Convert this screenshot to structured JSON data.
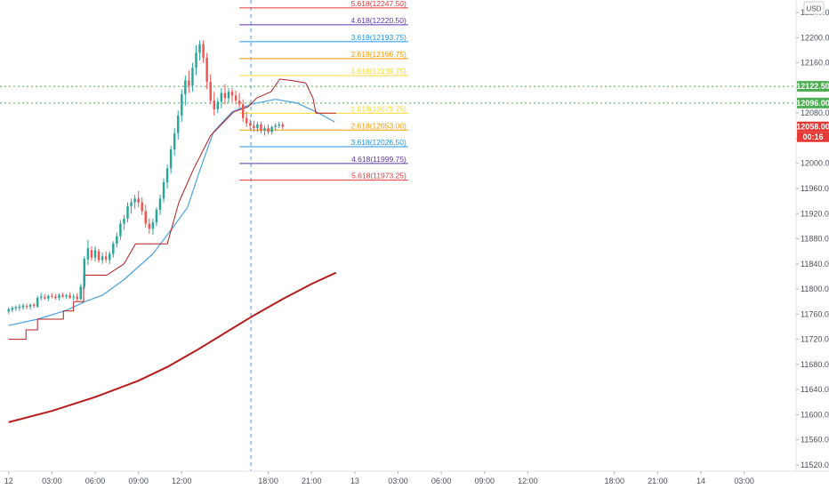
{
  "chart_data": {
    "type": "candlestick",
    "currency": "USD",
    "y_axis": {
      "ticks": [
        12240.0,
        12200.0,
        12160.0,
        12120.0,
        12080.0,
        12040.0,
        12000.0,
        11960.0,
        11920.0,
        11880.0,
        11840.0,
        11800.0,
        11760.0,
        11720.0,
        11680.0,
        11640.0,
        11600.0,
        11560.0,
        11520.0
      ],
      "ylim": [
        11510,
        12260
      ]
    },
    "x_axis": {
      "ticks": [
        "12",
        "03:00",
        "06:00",
        "09:00",
        "12:00",
        "18:00",
        "21:00",
        "13",
        "03:00",
        "06:00",
        "09:00",
        "12:00",
        "18:00",
        "21:00",
        "14",
        "03:00"
      ],
      "tick_hours": [
        0,
        3,
        6,
        9,
        12,
        18,
        21,
        24,
        27,
        30,
        33,
        36,
        42,
        45,
        48,
        51
      ],
      "xlim_hours": [
        -0.6,
        54.6
      ]
    },
    "candles": {
      "start_hour": 0,
      "step_hours": 0.25,
      "ohlc": [
        [
          11764,
          11771,
          11760,
          11768
        ],
        [
          11767,
          11773,
          11763,
          11770
        ],
        [
          11769,
          11774,
          11765,
          11771
        ],
        [
          11770,
          11776,
          11765,
          11772
        ],
        [
          11771,
          11777,
          11767,
          11774
        ],
        [
          11773,
          11777,
          11768,
          11772
        ],
        [
          11772,
          11777,
          11767,
          11775
        ],
        [
          11775,
          11778,
          11770,
          11773
        ],
        [
          11772,
          11789,
          11770,
          11786
        ],
        [
          11786,
          11794,
          11782,
          11788
        ],
        [
          11787,
          11792,
          11783,
          11785
        ],
        [
          11785,
          11791,
          11781,
          11789
        ],
        [
          11789,
          11793,
          11785,
          11788
        ],
        [
          11788,
          11792,
          11783,
          11786
        ],
        [
          11786,
          11793,
          11782,
          11790
        ],
        [
          11790,
          11794,
          11786,
          11788
        ],
        [
          11788,
          11792,
          11784,
          11790
        ],
        [
          11790,
          11794,
          11784,
          11786
        ],
        [
          11786,
          11792,
          11782,
          11788
        ],
        [
          11788,
          11793,
          11781,
          11784
        ],
        [
          11784,
          11808,
          11782,
          11804
        ],
        [
          11804,
          11852,
          11800,
          11848
        ],
        [
          11847,
          11878,
          11838,
          11865
        ],
        [
          11862,
          11868,
          11845,
          11850
        ],
        [
          11850,
          11868,
          11844,
          11862
        ],
        [
          11860,
          11864,
          11842,
          11846
        ],
        [
          11846,
          11858,
          11840,
          11852
        ],
        [
          11852,
          11860,
          11842,
          11847
        ],
        [
          11846,
          11860,
          11840,
          11856
        ],
        [
          11856,
          11876,
          11850,
          11872
        ],
        [
          11872,
          11890,
          11866,
          11884
        ],
        [
          11884,
          11910,
          11878,
          11904
        ],
        [
          11904,
          11918,
          11894,
          11912
        ],
        [
          11912,
          11938,
          11906,
          11932
        ],
        [
          11932,
          11944,
          11920,
          11938
        ],
        [
          11938,
          11950,
          11928,
          11944
        ],
        [
          11944,
          11956,
          11930,
          11938
        ],
        [
          11938,
          11946,
          11918,
          11924
        ],
        [
          11924,
          11934,
          11898,
          11904
        ],
        [
          11904,
          11912,
          11888,
          11896
        ],
        [
          11896,
          11912,
          11886,
          11906
        ],
        [
          11906,
          11930,
          11900,
          11926
        ],
        [
          11926,
          11950,
          11918,
          11944
        ],
        [
          11944,
          11976,
          11938,
          11970
        ],
        [
          11970,
          11998,
          11960,
          11992
        ],
        [
          11992,
          12028,
          11984,
          12022
        ],
        [
          12022,
          12056,
          12012,
          12048
        ],
        [
          12048,
          12084,
          12038,
          12076
        ],
        [
          12076,
          12118,
          12066,
          12110
        ],
        [
          12110,
          12140,
          12092,
          12132
        ],
        [
          12132,
          12148,
          12112,
          12124
        ],
        [
          12124,
          12160,
          12114,
          12152
        ],
        [
          12152,
          12188,
          12140,
          12176
        ],
        [
          12176,
          12196,
          12164,
          12190
        ],
        [
          12190,
          12196,
          12160,
          12168
        ],
        [
          12168,
          12176,
          12118,
          12130
        ],
        [
          12130,
          12142,
          12094,
          12100
        ],
        [
          12100,
          12114,
          12076,
          12086
        ],
        [
          12086,
          12104,
          12080,
          12098
        ],
        [
          12098,
          12120,
          12088,
          12112
        ],
        [
          12112,
          12126,
          12094,
          12104
        ],
        [
          12104,
          12120,
          12096,
          12114
        ],
        [
          12114,
          12120,
          12098,
          12108
        ],
        [
          12108,
          12116,
          12094,
          12100
        ],
        [
          12100,
          12112,
          12088,
          12094
        ],
        [
          12094,
          12102,
          12066,
          12072
        ],
        [
          12072,
          12082,
          12058,
          12064
        ],
        [
          12064,
          12070,
          12054,
          12060
        ],
        [
          12060,
          12068,
          12050,
          12056
        ],
        [
          12056,
          12066,
          12050,
          12062
        ],
        [
          12062,
          12066,
          12048,
          12052
        ],
        [
          12052,
          12060,
          12044,
          12056
        ],
        [
          12056,
          12062,
          12046,
          12050
        ],
        [
          12050,
          12060,
          12046,
          12058
        ],
        [
          12058,
          12064,
          12052,
          12060
        ],
        [
          12060,
          12066,
          12056,
          12062
        ],
        [
          12062,
          12066,
          12054,
          12058
        ]
      ]
    },
    "fibonacci_levels": [
      {
        "label": "5.618(12247.50)",
        "value": 12247.5,
        "color": "#e53935"
      },
      {
        "label": "4.618(12220.50)",
        "value": 12220.5,
        "color": "#5e35b1"
      },
      {
        "label": "3.618(12193.75)",
        "value": 12193.75,
        "color": "#2196f3"
      },
      {
        "label": "2.618(12166.75)",
        "value": 12166.75,
        "color": "#ff9800"
      },
      {
        "label": "1.618(12139.75)",
        "value": 12139.75,
        "color": "#fdd835"
      },
      {
        "label": "1.618(12079.75)",
        "value": 12079.75,
        "color": "#fdd835"
      },
      {
        "label": "2.618(12053.00)",
        "value": 12053.0,
        "color": "#ff9800"
      },
      {
        "label": "3.618(12026.50)",
        "value": 12026.5,
        "color": "#2196f3"
      },
      {
        "label": "4.618(11999.75)",
        "value": 11999.75,
        "color": "#5e35b1"
      },
      {
        "label": "5.618(11973.25)",
        "value": 11973.25,
        "color": "#e53935"
      }
    ],
    "fib_x_range_hours": [
      16.0,
      27.7
    ],
    "horizontal_levels": [
      {
        "label": "12122.50",
        "value": 12122.5,
        "color": "#4caf50"
      },
      {
        "label": "12096.00",
        "value": 12096.0,
        "color": "#4caf50"
      }
    ],
    "current_price": {
      "label": "12058.00",
      "countdown": "00:16",
      "value": 12058.0,
      "color": "#e53935"
    },
    "vertical_marker_hour": 16.8,
    "ema_fast": {
      "color": "#4aa3df",
      "points": [
        [
          0,
          11742
        ],
        [
          2,
          11752
        ],
        [
          4,
          11766
        ],
        [
          5.3,
          11780
        ],
        [
          6.5,
          11790
        ],
        [
          8,
          11815
        ],
        [
          10,
          11856
        ],
        [
          11.3,
          11895
        ],
        [
          12.4,
          11930
        ],
        [
          13.2,
          11985
        ],
        [
          14.2,
          12050
        ],
        [
          15.5,
          12082
        ],
        [
          16.8,
          12094
        ],
        [
          18.5,
          12102
        ],
        [
          20,
          12096
        ],
        [
          21.5,
          12080
        ],
        [
          22.6,
          12066
        ]
      ]
    },
    "trailing_stop": {
      "color": "#b71c1c",
      "points": [
        [
          0,
          11720
        ],
        [
          1.2,
          11720
        ],
        [
          1.2,
          11735
        ],
        [
          2,
          11735
        ],
        [
          2,
          11752
        ],
        [
          3.8,
          11752
        ],
        [
          3.8,
          11765
        ],
        [
          4.5,
          11765
        ],
        [
          4.5,
          11780
        ],
        [
          5.2,
          11780
        ],
        [
          5.2,
          11822
        ],
        [
          6.8,
          11822
        ],
        [
          8,
          11840
        ],
        [
          8.8,
          11872
        ],
        [
          10.4,
          11872
        ],
        [
          11.0,
          11872
        ],
        [
          11.8,
          11938
        ],
        [
          12.8,
          11990
        ],
        [
          14,
          12044
        ],
        [
          15.6,
          12082
        ],
        [
          16.6,
          12090
        ],
        [
          17.2,
          12104
        ],
        [
          18.2,
          12114
        ],
        [
          18.8,
          12134
        ],
        [
          19.6,
          12132
        ],
        [
          20.6,
          12128
        ],
        [
          21.1,
          12104
        ],
        [
          21.3,
          12080
        ],
        [
          22.7,
          12080
        ]
      ]
    },
    "ma_slow": {
      "color": "#b71c1c",
      "points": [
        [
          0,
          11588
        ],
        [
          3,
          11606
        ],
        [
          6,
          11628
        ],
        [
          9,
          11654
        ],
        [
          11,
          11676
        ],
        [
          13,
          11702
        ],
        [
          15,
          11730
        ],
        [
          17,
          11758
        ],
        [
          19,
          11784
        ],
        [
          21,
          11808
        ],
        [
          22.7,
          11826
        ]
      ]
    }
  }
}
